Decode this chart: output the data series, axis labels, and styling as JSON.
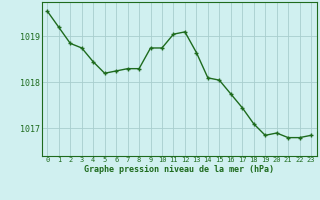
{
  "x": [
    0,
    1,
    2,
    3,
    4,
    5,
    6,
    7,
    8,
    9,
    10,
    11,
    12,
    13,
    14,
    15,
    16,
    17,
    18,
    19,
    20,
    21,
    22,
    23
  ],
  "y": [
    1019.55,
    1019.2,
    1018.85,
    1018.75,
    1018.45,
    1018.2,
    1018.25,
    1018.3,
    1018.3,
    1018.75,
    1018.75,
    1019.05,
    1019.1,
    1018.65,
    1018.1,
    1018.05,
    1017.75,
    1017.45,
    1017.1,
    1016.85,
    1016.9,
    1016.8,
    1016.8,
    1016.85
  ],
  "line_color": "#1e6b1e",
  "marker_color": "#1e6b1e",
  "bg_color": "#d0f0f0",
  "grid_color": "#a8cece",
  "xlabel": "Graphe pression niveau de la mer (hPa)",
  "xlabel_color": "#1e6b1e",
  "ylabel_ticks": [
    1017,
    1018,
    1019
  ],
  "ylim": [
    1016.4,
    1019.75
  ],
  "xlim": [
    -0.5,
    23.5
  ],
  "fig_bg": "#d0f0f0",
  "border_color": "#1e6b1e",
  "tick_fontsize": 5.0,
  "ytick_fontsize": 6.0,
  "xlabel_fontsize": 6.0
}
